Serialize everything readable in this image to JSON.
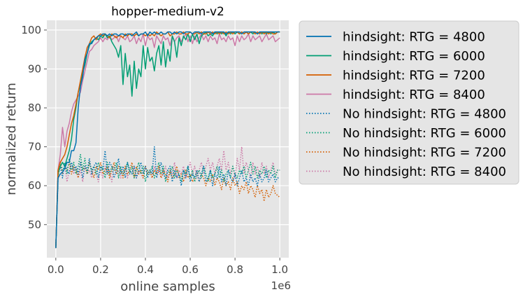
{
  "chart_data": {
    "type": "line",
    "title": "hopper-medium-v2",
    "xlabel": "online samples",
    "ylabel": "normalized return",
    "x_offset_label": "1e6",
    "xlim": [
      -0.04,
      1.04
    ],
    "ylim": [
      41.5,
      102.5
    ],
    "x_ticks": [
      0.0,
      0.2,
      0.4,
      0.6,
      0.8,
      1.0
    ],
    "x_tick_labels": [
      "0.0",
      "0.2",
      "0.4",
      "0.6",
      "0.8",
      "1.0"
    ],
    "y_ticks": [
      50,
      60,
      70,
      80,
      90,
      100
    ],
    "y_tick_labels": [
      "50",
      "60",
      "70",
      "80",
      "90",
      "100"
    ],
    "grid": true,
    "legend_position": "outside-right",
    "x_sample_count": 101,
    "x_range": [
      0,
      1.0
    ],
    "series": [
      {
        "name": "hindsight: RTG = 4800",
        "color": "#0072B2",
        "style": "solid",
        "values": [
          44,
          62,
          63,
          63.5,
          64.5,
          66,
          66,
          69,
          69,
          71,
          80,
          85.5,
          88,
          92.5,
          94,
          96.5,
          96.5,
          97.5,
          98,
          98.5,
          98.5,
          99,
          99,
          98.5,
          99,
          98.5,
          99,
          99,
          98.5,
          99,
          99,
          98.5,
          99,
          99,
          98.5,
          99,
          99.5,
          98.5,
          99,
          99,
          99.5,
          98.5,
          99.5,
          99,
          99.5,
          99,
          99,
          99.5,
          99,
          99,
          99.5,
          99.5,
          99,
          99.5,
          99,
          99.5,
          99.5,
          99,
          99.5,
          99.5,
          99.5,
          99,
          99.5,
          99.5,
          99.5,
          99,
          99.5,
          99.5,
          99.5,
          99.5,
          99,
          99.5,
          99.5,
          99.5,
          99.5,
          99.5,
          99,
          99.5,
          99.5,
          99.5,
          99.5,
          99.5,
          99.5,
          99,
          99.5,
          99.5,
          99.5,
          99.5,
          99.5,
          99.5,
          99,
          99.5,
          99.5,
          99.5,
          99.5,
          99.5,
          99.5,
          99.5,
          99.5,
          99.5,
          99.5
        ]
      },
      {
        "name": "hindsight: RTG = 6000",
        "color": "#009E73",
        "style": "solid",
        "values": [
          44,
          63,
          65,
          66,
          65,
          67,
          69,
          72,
          77,
          80,
          84,
          86,
          89,
          91,
          94,
          96,
          97,
          97.5,
          98,
          97.5,
          98.5,
          98,
          99,
          98,
          98.5,
          97,
          96,
          95,
          93,
          96,
          86,
          94,
          88,
          91,
          83,
          92,
          85,
          90,
          88,
          96,
          90,
          95.5,
          92,
          93,
          89.5,
          94,
          96,
          91,
          97,
          90.5,
          95,
          92,
          98.5,
          97,
          93,
          98,
          96,
          98.5,
          97.5,
          99,
          97,
          99,
          97.5,
          99,
          96.5,
          98.5,
          99,
          99.5,
          98.5,
          99,
          98.5,
          99.5,
          99,
          99.5,
          99,
          99.5,
          98.5,
          99.5,
          99,
          99.5,
          99,
          99.5,
          99,
          99.5,
          99,
          99.5,
          99,
          99.5,
          99,
          99.5,
          99,
          99.5,
          99,
          99.5,
          99,
          99.5,
          99,
          99.5,
          99,
          99.5,
          99.5
        ]
      },
      {
        "name": "hindsight: RTG = 7200",
        "color": "#D55E00",
        "style": "solid",
        "values": [
          44,
          64,
          66,
          67,
          68,
          70,
          73,
          76,
          78,
          81,
          84,
          87,
          90,
          93,
          95.5,
          96.5,
          98,
          98.5,
          97.5,
          98.5,
          99,
          98.5,
          99,
          98.5,
          98,
          99,
          98.5,
          98,
          98.5,
          98.5,
          98,
          99,
          98.5,
          99,
          99,
          98.5,
          99,
          98.5,
          99,
          99,
          98.5,
          99,
          98.5,
          99,
          98.5,
          99.5,
          99,
          98.5,
          99,
          99,
          99.5,
          98.5,
          99,
          99,
          99.5,
          99,
          99,
          99.5,
          99,
          99,
          99.5,
          99,
          99,
          99.5,
          99,
          99.5,
          99,
          99,
          99.5,
          99,
          99.5,
          99,
          99.5,
          99,
          99.5,
          99,
          99.5,
          99,
          99.5,
          99,
          99.5,
          99.5,
          99,
          99.5,
          99,
          99.5,
          99,
          99.5,
          99.5,
          99,
          99.5,
          99,
          99.5,
          99,
          99.5,
          99,
          99.5,
          99,
          99,
          99.5,
          99.5
        ]
      },
      {
        "name": "hindsight: RTG = 8400",
        "color": "#CC79A7",
        "style": "solid",
        "values": [
          44,
          64,
          68,
          75,
          70,
          74,
          76,
          79,
          81,
          82,
          83,
          84,
          87,
          89.5,
          92,
          94.5,
          95,
          96,
          96.5,
          97,
          98,
          97,
          98,
          97.5,
          98.5,
          97.5,
          98,
          98.5,
          97,
          98.5,
          98,
          97.5,
          98.5,
          97,
          97.5,
          98.5,
          96.5,
          98,
          97,
          99,
          96,
          98.5,
          97.5,
          98,
          95.5,
          98.5,
          97.5,
          96.5,
          98.5,
          97.5,
          98,
          96,
          98.5,
          97,
          98,
          98.5,
          97,
          98,
          99,
          97,
          98.5,
          96.5,
          98.5,
          97,
          98,
          99,
          97.5,
          98.5,
          97,
          98.5,
          97.5,
          98,
          96.5,
          99,
          97.5,
          98,
          97,
          98.5,
          97.5,
          98,
          96,
          98.5,
          97,
          98.5,
          97.5,
          98,
          99,
          97,
          98.5,
          97.5,
          98,
          98.5,
          97,
          98,
          99,
          97.5,
          98,
          98.5,
          97,
          97.5,
          98
        ]
      },
      {
        "name": "No hindsight: RTG = 4800",
        "color": "#0072B2",
        "style": "dotted",
        "values": [
          44,
          63,
          65,
          62,
          66,
          64,
          63,
          66,
          64,
          65,
          63,
          66,
          62,
          65,
          64,
          67,
          63,
          65,
          66,
          62,
          65,
          64,
          69,
          63,
          66,
          65,
          62,
          64,
          67,
          63,
          65,
          62,
          66,
          64,
          63,
          65,
          62,
          64,
          66,
          63,
          65,
          62,
          64,
          63,
          70,
          62,
          64,
          66,
          63,
          62,
          64,
          65,
          61,
          64,
          62,
          63,
          60,
          64,
          62,
          65,
          61,
          63,
          62,
          64,
          61,
          63,
          65,
          61,
          62,
          64,
          60,
          63,
          62,
          65,
          61,
          63,
          60,
          64,
          62,
          61,
          63,
          60,
          62,
          64,
          61,
          62,
          60,
          63,
          61,
          62,
          60,
          63,
          61,
          62,
          64,
          61,
          62,
          63,
          61,
          62,
          62
        ]
      },
      {
        "name": "No hindsight: RTG = 6000",
        "color": "#009E73",
        "style": "dotted",
        "values": [
          44,
          62,
          66,
          64,
          65,
          63,
          67,
          64,
          66,
          63,
          65,
          68,
          64,
          67,
          63,
          66,
          64,
          65,
          63,
          66,
          64,
          65,
          62,
          66,
          63,
          65,
          64,
          66,
          62,
          65,
          63,
          64,
          66,
          63,
          65,
          62,
          64,
          66,
          63,
          65,
          61,
          64,
          63,
          65,
          62,
          64,
          66,
          63,
          65,
          61,
          64,
          63,
          65,
          62,
          64,
          63,
          61,
          64,
          63,
          65,
          62,
          64,
          61,
          63,
          64,
          62,
          65,
          63,
          61,
          64,
          62,
          63,
          65,
          62,
          64,
          61,
          63,
          64,
          62,
          65,
          63,
          62,
          64,
          63,
          65,
          62,
          64,
          66,
          63,
          65,
          62,
          64,
          63,
          65,
          62,
          64,
          63,
          65,
          62,
          64,
          64
        ]
      },
      {
        "name": "No hindsight: RTG = 7200",
        "color": "#D55E00",
        "style": "dotted",
        "values": [
          44,
          64,
          66,
          63,
          65,
          64,
          66,
          63,
          65,
          64,
          62,
          66,
          64,
          65,
          63,
          66,
          64,
          62,
          65,
          64,
          66,
          63,
          64,
          65,
          62,
          64,
          66,
          63,
          65,
          64,
          62,
          65,
          63,
          64,
          66,
          62,
          65,
          63,
          64,
          62,
          65,
          63,
          64,
          62,
          64,
          63,
          65,
          62,
          64,
          63,
          61,
          64,
          62,
          63,
          65,
          62,
          63,
          61,
          64,
          62,
          63,
          61,
          62,
          64,
          61,
          63,
          62,
          60,
          62,
          61,
          63,
          60,
          62,
          61,
          59,
          62,
          60,
          61,
          59,
          62,
          60,
          61,
          58,
          60,
          59,
          61,
          58,
          60,
          59,
          57,
          60,
          58,
          59,
          56,
          59,
          57,
          58,
          60,
          58,
          57.5,
          57
        ]
      },
      {
        "name": "No hindsight: RTG = 8400",
        "color": "#CC79A7",
        "style": "dotted",
        "values": [
          44,
          63,
          66,
          63,
          65,
          61,
          64,
          66,
          63,
          65,
          62,
          64,
          61,
          65,
          63,
          64,
          62,
          65,
          63,
          61,
          64,
          62,
          65,
          63,
          64,
          61,
          65,
          63,
          64,
          62,
          63,
          65,
          62,
          64,
          63,
          65,
          62,
          64,
          63,
          62,
          65,
          63,
          64,
          62,
          65,
          63,
          64,
          62,
          63,
          65,
          62,
          64,
          63,
          66,
          62,
          64,
          63,
          65,
          62,
          64,
          66,
          63,
          65,
          62,
          64,
          66,
          63,
          65,
          67,
          64,
          66,
          63,
          65,
          67,
          64,
          69,
          64,
          66,
          63,
          65,
          62,
          67,
          64,
          70,
          63,
          66,
          64,
          62,
          66,
          63,
          65,
          62,
          66,
          63,
          65,
          62,
          64,
          66,
          63,
          64,
          64
        ]
      }
    ]
  }
}
